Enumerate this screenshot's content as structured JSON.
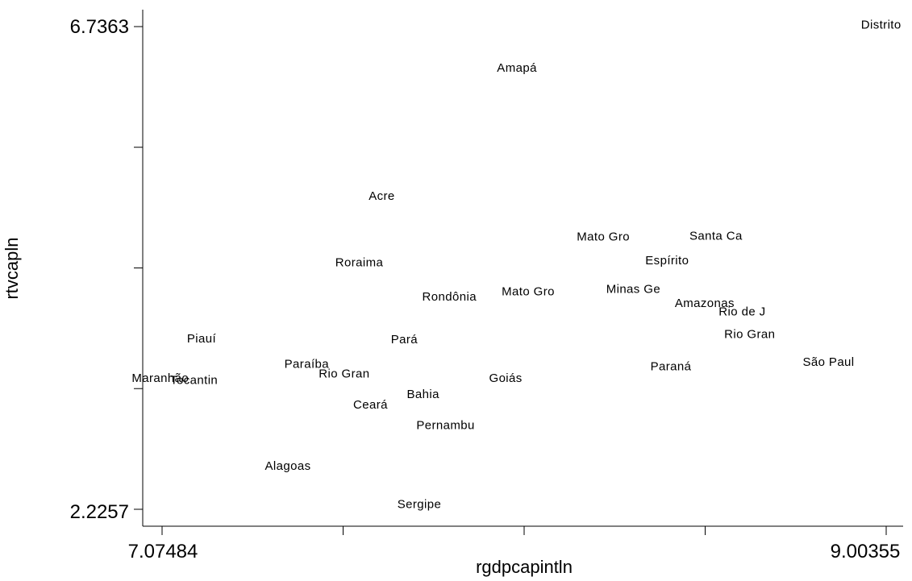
{
  "chart_data": {
    "type": "scatter",
    "title": "",
    "xlabel": "rgdpcapintln",
    "ylabel": "rtvcapln",
    "xlim": [
      7.07484,
      9.00355
    ],
    "ylim": [
      2.2257,
      6.7363
    ],
    "x_tick_labels": [
      "7.07484",
      "9.00355"
    ],
    "y_tick_labels": [
      "6.7363",
      "2.2257"
    ],
    "x_ticks": [
      7.07484,
      7.55702,
      8.0392,
      8.52137,
      9.00355
    ],
    "y_ticks": [
      2.2257,
      3.3534,
      4.481,
      5.6087,
      6.7363
    ],
    "marker": "label",
    "points": [
      {
        "label": "Distrito",
        "x": 8.99,
        "y": 6.75
      },
      {
        "label": "Amapá",
        "x": 8.02,
        "y": 6.35
      },
      {
        "label": "Acre",
        "x": 7.66,
        "y": 5.15
      },
      {
        "label": "Mato Gro",
        "x": 8.25,
        "y": 4.77
      },
      {
        "label": "Santa Ca",
        "x": 8.55,
        "y": 4.78
      },
      {
        "label": "Espírito",
        "x": 8.42,
        "y": 4.55
      },
      {
        "label": "Roraima",
        "x": 7.6,
        "y": 4.53
      },
      {
        "label": "Mato Gro",
        "x": 8.05,
        "y": 4.26
      },
      {
        "label": "Minas Ge",
        "x": 8.33,
        "y": 4.28
      },
      {
        "label": "Rondônia",
        "x": 7.84,
        "y": 4.21
      },
      {
        "label": "Amazonas",
        "x": 8.52,
        "y": 4.15
      },
      {
        "label": "Rio de J",
        "x": 8.62,
        "y": 4.07
      },
      {
        "label": "Rio Gran",
        "x": 8.64,
        "y": 3.86
      },
      {
        "label": "Piauí",
        "x": 7.18,
        "y": 3.82
      },
      {
        "label": "Pará",
        "x": 7.72,
        "y": 3.81
      },
      {
        "label": "Paraíba",
        "x": 7.46,
        "y": 3.58
      },
      {
        "label": "Paraná",
        "x": 8.43,
        "y": 3.56
      },
      {
        "label": "São Paul",
        "x": 8.85,
        "y": 3.6
      },
      {
        "label": "Rio Gran",
        "x": 7.56,
        "y": 3.49
      },
      {
        "label": "Maranhão",
        "x": 7.07,
        "y": 3.45
      },
      {
        "label": "Tocantin",
        "x": 7.16,
        "y": 3.43
      },
      {
        "label": "Goiás",
        "x": 7.99,
        "y": 3.45
      },
      {
        "label": "Bahia",
        "x": 7.77,
        "y": 3.3
      },
      {
        "label": "Ceará",
        "x": 7.63,
        "y": 3.2
      },
      {
        "label": "Pernambu",
        "x": 7.83,
        "y": 3.01
      },
      {
        "label": "Alagoas",
        "x": 7.41,
        "y": 2.63
      },
      {
        "label": "Sergipe",
        "x": 7.76,
        "y": 2.27
      }
    ]
  }
}
